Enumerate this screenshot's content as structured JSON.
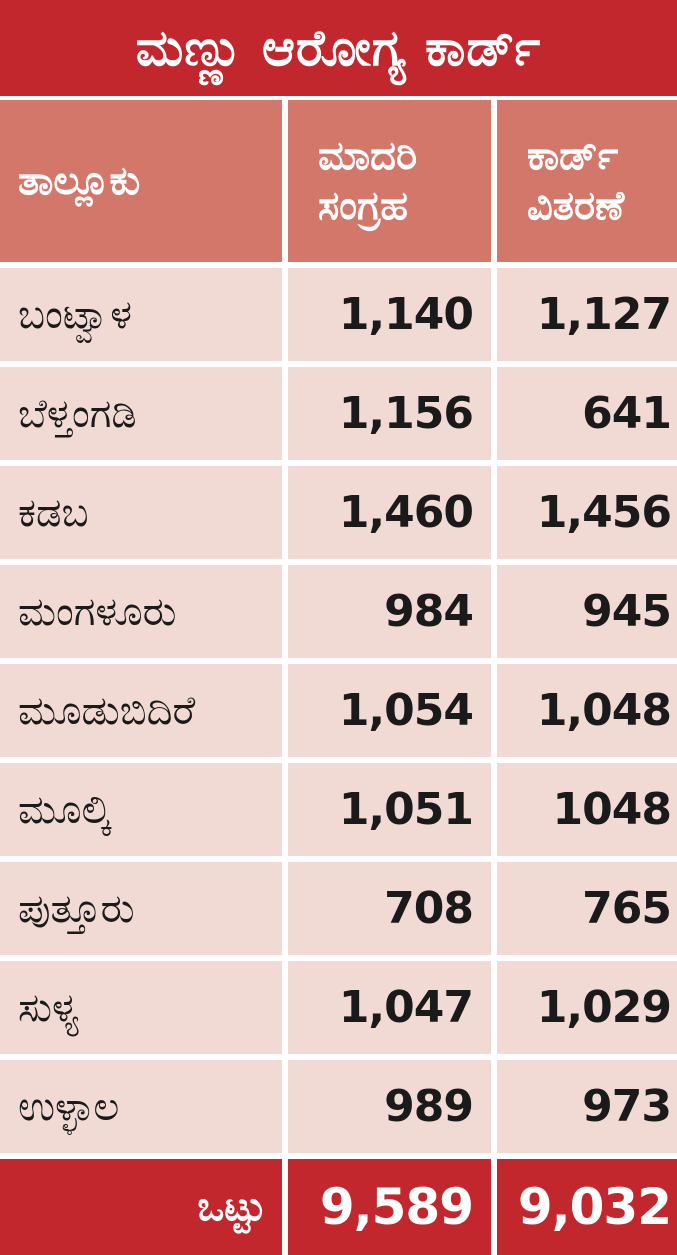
{
  "title": "ಮಣ್ಣು ಆರೋಗ್ಯ ಕಾರ್ಡ್",
  "header": {
    "taluk": "ತಾಲ್ಲೂಕು",
    "sample_line1": "ಮಾದರಿ",
    "sample_line2": "ಸಂಗ್ರಹ",
    "card_line1": "ಕಾರ್ಡ್",
    "card_line2": "ವಿತರಣೆ"
  },
  "rows": [
    {
      "taluk": "ಬಂಟ್ವಾಳ",
      "sample": "1,140",
      "card": "1,127"
    },
    {
      "taluk": "ಬೆಳ್ತಂಗಡಿ",
      "sample": "1,156",
      "card": "641"
    },
    {
      "taluk": "ಕಡಬ",
      "sample": "1,460",
      "card": "1,456"
    },
    {
      "taluk": "ಮಂಗಳೂರು",
      "sample": "984",
      "card": "945"
    },
    {
      "taluk": "ಮೂಡುಬಿದಿರೆ",
      "sample": "1,054",
      "card": "1,048"
    },
    {
      "taluk": "ಮೂಲ್ಕಿ",
      "sample": "1,051",
      "card": "1048"
    },
    {
      "taluk": "ಪುತ್ತೂರು",
      "sample": "708",
      "card": "765"
    },
    {
      "taluk": "ಸುಳ್ಯ",
      "sample": "1,047",
      "card": "1,029"
    },
    {
      "taluk": "ಉಳ್ಳಾಲ",
      "sample": "989",
      "card": "973"
    }
  ],
  "total": {
    "label": "ಒಟ್ಟು",
    "sample": "9,589",
    "card": "9,032"
  }
}
